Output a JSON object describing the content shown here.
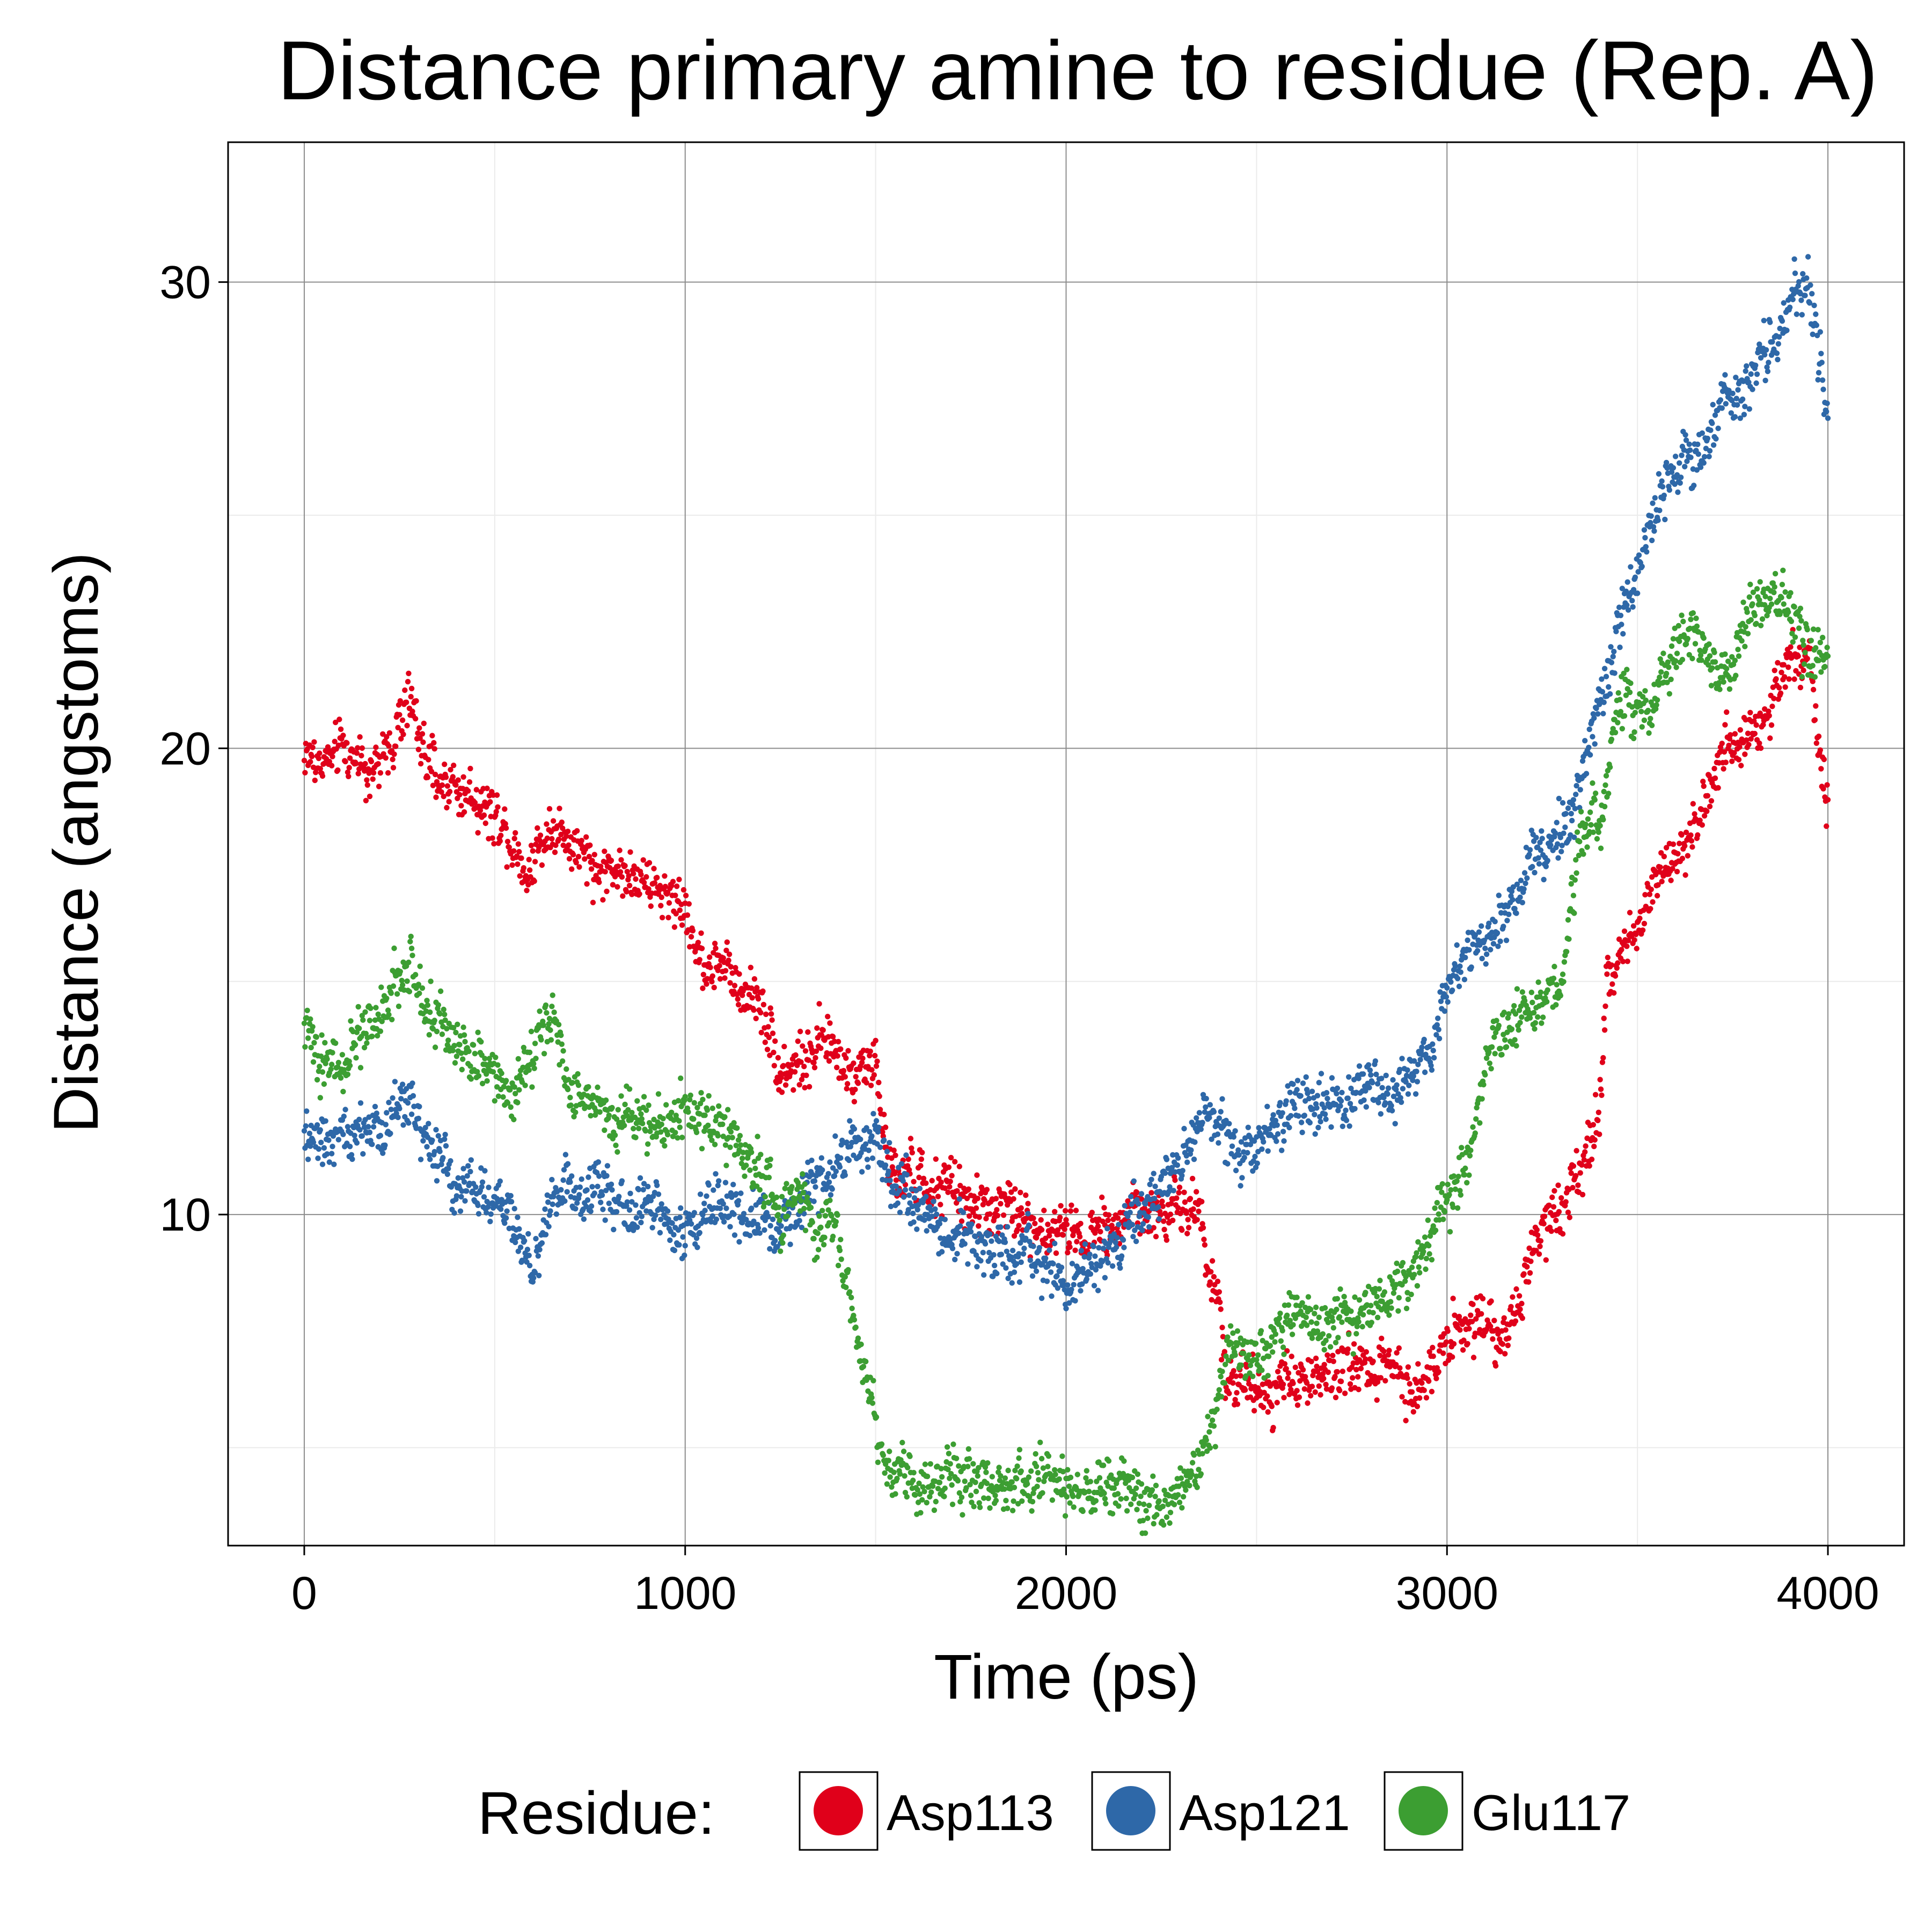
{
  "chart_data": {
    "type": "scatter",
    "title": "Distance primary amine to residue (Rep. A)",
    "xlabel": "Time (ps)",
    "ylabel": "Distance (angstoms)",
    "xlim": [
      -200,
      4200
    ],
    "ylim": [
      2.9,
      33.0
    ],
    "x_ticks": [
      0,
      1000,
      2000,
      3000,
      4000
    ],
    "x_tick_labels": [
      "0",
      "1000",
      "2000",
      "3000",
      "4000"
    ],
    "y_ticks": [
      10,
      20,
      30
    ],
    "y_tick_labels": [
      "10",
      "20",
      "30"
    ],
    "grid": true,
    "legend": {
      "title": "Residue:",
      "placement": "bottom"
    },
    "series": [
      {
        "name": "Asp113",
        "color": "#E0001A",
        "key_x": [
          0,
          100,
          200,
          280,
          320,
          400,
          500,
          580,
          650,
          700,
          800,
          900,
          1000,
          1050,
          1100,
          1200,
          1250,
          1300,
          1350,
          1400,
          1450,
          1500,
          1530,
          1600,
          1700,
          1800,
          1900,
          2000,
          2100,
          2150,
          2200,
          2300,
          2350,
          2380,
          2400,
          2420,
          2450,
          2500,
          2600,
          2700,
          2800,
          2900,
          2950,
          3000,
          3050,
          3100,
          3150,
          3200,
          3250,
          3300,
          3350,
          3400,
          3420,
          3450,
          3500,
          3550,
          3600,
          3650,
          3700,
          3750,
          3800,
          3850,
          3900,
          3950,
          3980,
          4000
        ],
        "key_y": [
          19.8,
          19.8,
          19.7,
          21.0,
          19.6,
          19.2,
          18.6,
          17.5,
          18.3,
          18.0,
          17.5,
          17.2,
          16.5,
          15.3,
          15.2,
          14.5,
          13.2,
          13.2,
          13.3,
          13.4,
          13.2,
          13.3,
          11.0,
          10.8,
          10.5,
          10.2,
          9.9,
          9.6,
          9.8,
          10.0,
          9.9,
          10.1,
          10.2,
          8.5,
          8.2,
          6.5,
          6.5,
          6.4,
          6.5,
          6.6,
          6.7,
          6.6,
          6.3,
          7.5,
          7.8,
          7.8,
          7.2,
          8.5,
          9.7,
          9.8,
          11.0,
          12.2,
          15.0,
          15.3,
          16.2,
          17.2,
          18.0,
          18.5,
          19.2,
          20.0,
          20.5,
          21.0,
          22.0,
          22.0,
          19.5,
          19.0
        ]
      },
      {
        "name": "Asp121",
        "color": "#2E68A8",
        "key_x": [
          0,
          100,
          200,
          280,
          320,
          400,
          500,
          580,
          600,
          650,
          700,
          800,
          900,
          1000,
          1100,
          1200,
          1250,
          1300,
          1350,
          1400,
          1450,
          1500,
          1550,
          1600,
          1700,
          1800,
          1900,
          1950,
          2000,
          2050,
          2100,
          2150,
          2200,
          2250,
          2300,
          2350,
          2400,
          2450,
          2500,
          2600,
          2700,
          2800,
          2900,
          2950,
          3000,
          3050,
          3100,
          3150,
          3200,
          3250,
          3300,
          3350,
          3400,
          3450,
          3500,
          3550,
          3600,
          3650,
          3700,
          3750,
          3800,
          3850,
          3900,
          3950,
          3980,
          4000
        ],
        "key_y": [
          11.5,
          11.8,
          11.8,
          12.5,
          11.5,
          10.8,
          10.3,
          9.2,
          8.6,
          10.5,
          10.8,
          10.5,
          10.2,
          9.9,
          10.1,
          10.0,
          9.6,
          10.5,
          10.8,
          11.0,
          11.5,
          11.8,
          10.2,
          10.3,
          9.6,
          9.3,
          9.1,
          8.7,
          8.4,
          8.8,
          9.0,
          9.4,
          10.0,
          10.5,
          11.0,
          12.0,
          12.0,
          11.5,
          11.3,
          12.3,
          12.5,
          12.6,
          12.8,
          13.5,
          15.0,
          15.3,
          16.0,
          16.5,
          17.0,
          17.8,
          18.2,
          19.0,
          21.0,
          22.8,
          24.0,
          25.5,
          26.0,
          26.3,
          26.8,
          27.5,
          28.0,
          28.5,
          29.5,
          30.0,
          28.5,
          27.5
        ]
      },
      {
        "name": "Glu117",
        "color": "#3C9E32",
        "key_x": [
          0,
          50,
          100,
          150,
          200,
          280,
          320,
          400,
          500,
          550,
          600,
          650,
          700,
          800,
          900,
          1000,
          1050,
          1100,
          1150,
          1200,
          1250,
          1300,
          1350,
          1400,
          1450,
          1480,
          1520,
          1560,
          1600,
          1700,
          1800,
          1900,
          2000,
          2100,
          2150,
          2200,
          2250,
          2300,
          2350,
          2380,
          2420,
          2450,
          2500,
          2600,
          2700,
          2800,
          2900,
          2950,
          3000,
          3050,
          3080,
          3100,
          3150,
          3200,
          3250,
          3300,
          3350,
          3380,
          3400,
          3450,
          3500,
          3550,
          3600,
          3650,
          3700,
          3750,
          3800,
          3850,
          3900,
          3950,
          4000
        ],
        "key_y": [
          14.0,
          13.5,
          13.0,
          14.0,
          14.5,
          15.2,
          14.5,
          13.8,
          13.0,
          12.8,
          13.8,
          14.2,
          12.8,
          12.3,
          12.0,
          12.0,
          12.0,
          11.8,
          11.5,
          11.0,
          10.0,
          10.2,
          10.0,
          9.5,
          7.5,
          6.5,
          4.5,
          4.4,
          4.3,
          4.2,
          4.2,
          4.1,
          4.1,
          4.0,
          4.0,
          3.8,
          3.8,
          4.2,
          4.6,
          5.5,
          7.0,
          7.1,
          7.2,
          7.6,
          7.8,
          8.0,
          8.5,
          9.5,
          10.5,
          11.0,
          12.0,
          13.0,
          14.0,
          14.3,
          14.5,
          15.0,
          18.0,
          18.5,
          18.3,
          21.0,
          21.0,
          21.3,
          22.0,
          22.5,
          21.5,
          21.8,
          23.0,
          23.5,
          23.0,
          22.0,
          22.0
        ]
      }
    ]
  }
}
